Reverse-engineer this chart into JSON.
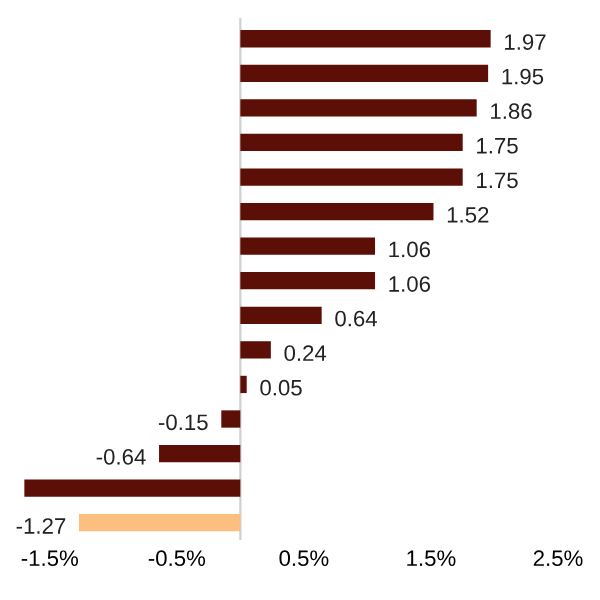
{
  "chart_data": {
    "type": "bar",
    "orientation": "horizontal",
    "categories": [
      null,
      null,
      null,
      null,
      null,
      null,
      null,
      null,
      null,
      null,
      null,
      null,
      null,
      null,
      null
    ],
    "values": [
      1.97,
      1.95,
      1.86,
      1.75,
      1.75,
      1.52,
      1.06,
      1.06,
      0.64,
      0.24,
      0.05,
      -0.15,
      -0.64,
      -1.7,
      -1.27
    ],
    "colors": [
      "#5c0f07",
      "#5c0f07",
      "#5c0f07",
      "#5c0f07",
      "#5c0f07",
      "#5c0f07",
      "#5c0f07",
      "#5c0f07",
      "#5c0f07",
      "#5c0f07",
      "#5c0f07",
      "#5c0f07",
      "#5c0f07",
      "#5c0f07",
      "#fdbf80"
    ],
    "value_labels": [
      "1.97",
      "1.95",
      "1.86",
      "1.75",
      "1.75",
      "1.52",
      "1.06",
      "1.06",
      "0.64",
      "0.24",
      "0.05",
      "-0.15",
      "-0.64",
      null,
      "-1.27"
    ],
    "xlim": [
      -1.75,
      2.5
    ],
    "xticks": [
      {
        "value": -1.5,
        "label": "-1.5%"
      },
      {
        "value": -0.5,
        "label": "-0.5%"
      },
      {
        "value": 0.5,
        "label": "0.5%"
      },
      {
        "value": 1.5,
        "label": "1.5%"
      },
      {
        "value": 2.5,
        "label": "2.5%"
      }
    ],
    "grid": false,
    "tick_labels": "x"
  }
}
